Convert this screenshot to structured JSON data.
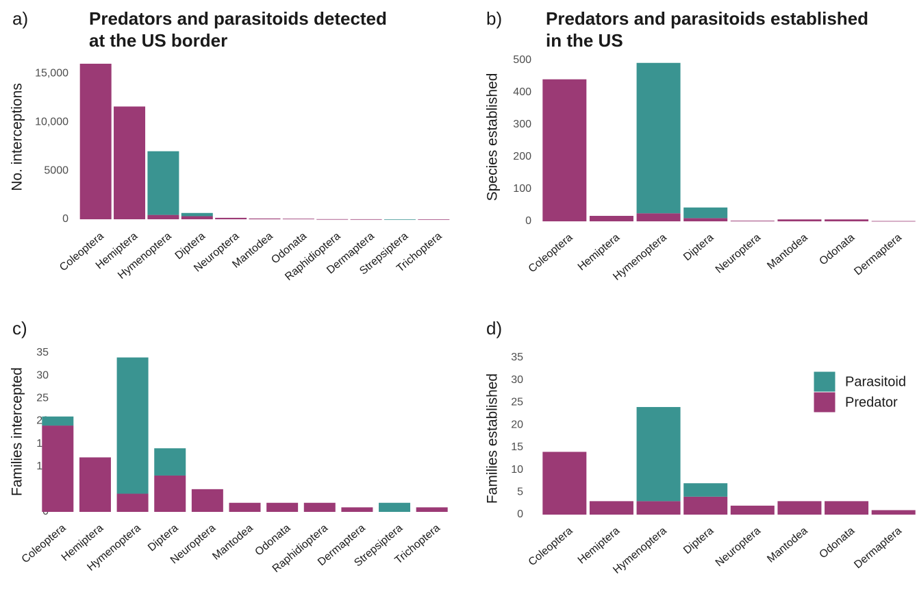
{
  "colors": {
    "Parasitoid": "#3a9491",
    "Predator": "#9b3a75"
  },
  "legend": {
    "items": [
      "Parasitoid",
      "Predator"
    ]
  },
  "chart_data": [
    {
      "panel": "a)",
      "type": "bar",
      "stacked": true,
      "title": [
        "Predators and parasitoids detected",
        "at the US border"
      ],
      "ylabel": "No. interceptions",
      "ylim": [
        0,
        16000
      ],
      "yticks": [
        0,
        5000,
        10000,
        15000
      ],
      "ytick_labels": [
        "0",
        "5000",
        "10,000",
        "15,000"
      ],
      "categories": [
        "Coleoptera",
        "Hemiptera",
        "Hymenoptera",
        "Diptera",
        "Neuroptera",
        "Mantodea",
        "Odonata",
        "Raphidioptera",
        "Dermaptera",
        "Strepsiptera",
        "Trichoptera"
      ],
      "series": [
        {
          "name": "Predator",
          "values": [
            16000,
            11600,
            450,
            320,
            150,
            80,
            60,
            15,
            8,
            0,
            4
          ]
        },
        {
          "name": "Parasitoid",
          "values": [
            0,
            0,
            6550,
            330,
            0,
            0,
            0,
            0,
            0,
            4,
            0
          ]
        }
      ]
    },
    {
      "panel": "b)",
      "type": "bar",
      "stacked": true,
      "title": [
        "Predators and parasitoids established",
        "in the US"
      ],
      "ylabel": "Species established",
      "ylim": [
        0,
        500
      ],
      "yticks": [
        0,
        100,
        200,
        300,
        400,
        500
      ],
      "ytick_labels": [
        "0",
        "100",
        "200",
        "300",
        "400",
        "500"
      ],
      "categories": [
        "Coleoptera",
        "Hemiptera",
        "Hymenoptera",
        "Diptera",
        "Neuroptera",
        "Mantodea",
        "Odonata",
        "Dermaptera"
      ],
      "series": [
        {
          "name": "Predator",
          "values": [
            441,
            17,
            25,
            10,
            2,
            6,
            6,
            1
          ]
        },
        {
          "name": "Parasitoid",
          "values": [
            0,
            0,
            467,
            33,
            0,
            0,
            0,
            0
          ]
        }
      ]
    },
    {
      "panel": "c)",
      "type": "bar",
      "stacked": true,
      "title": [],
      "ylabel": "Families intercepted",
      "ylim": [
        0,
        35
      ],
      "yticks": [
        0,
        5,
        10,
        15,
        20,
        25,
        30,
        35
      ],
      "ytick_labels": [
        "0",
        "5",
        "10",
        "15",
        "20",
        "25",
        "30",
        "35"
      ],
      "categories": [
        "Coleoptera",
        "Hemiptera",
        "Hymenoptera",
        "Diptera",
        "Neuroptera",
        "Mantodea",
        "Odonata",
        "Raphidioptera",
        "Dermaptera",
        "Strepsiptera",
        "Trichoptera"
      ],
      "series": [
        {
          "name": "Predator",
          "values": [
            19,
            12,
            4,
            8,
            5,
            2,
            2,
            2,
            1,
            0,
            1
          ]
        },
        {
          "name": "Parasitoid",
          "values": [
            2,
            0,
            30,
            6,
            0,
            0,
            0,
            0,
            0,
            2,
            0
          ]
        }
      ]
    },
    {
      "panel": "d)",
      "type": "bar",
      "stacked": true,
      "title": [],
      "ylabel": "Families established",
      "ylim": [
        0,
        35
      ],
      "yticks": [
        0,
        5,
        10,
        15,
        20,
        25,
        30,
        35
      ],
      "ytick_labels": [
        "0",
        "5",
        "10",
        "15",
        "20",
        "25",
        "30",
        "35"
      ],
      "categories": [
        "Coleoptera",
        "Hemiptera",
        "Hymenoptera",
        "Diptera",
        "Neuroptera",
        "Mantodea",
        "Odonata",
        "Dermaptera"
      ],
      "series": [
        {
          "name": "Predator",
          "values": [
            14,
            3,
            3,
            4,
            2,
            3,
            3,
            1
          ]
        },
        {
          "name": "Parasitoid",
          "values": [
            0,
            0,
            21,
            3,
            0,
            0,
            0,
            0
          ]
        }
      ]
    }
  ]
}
